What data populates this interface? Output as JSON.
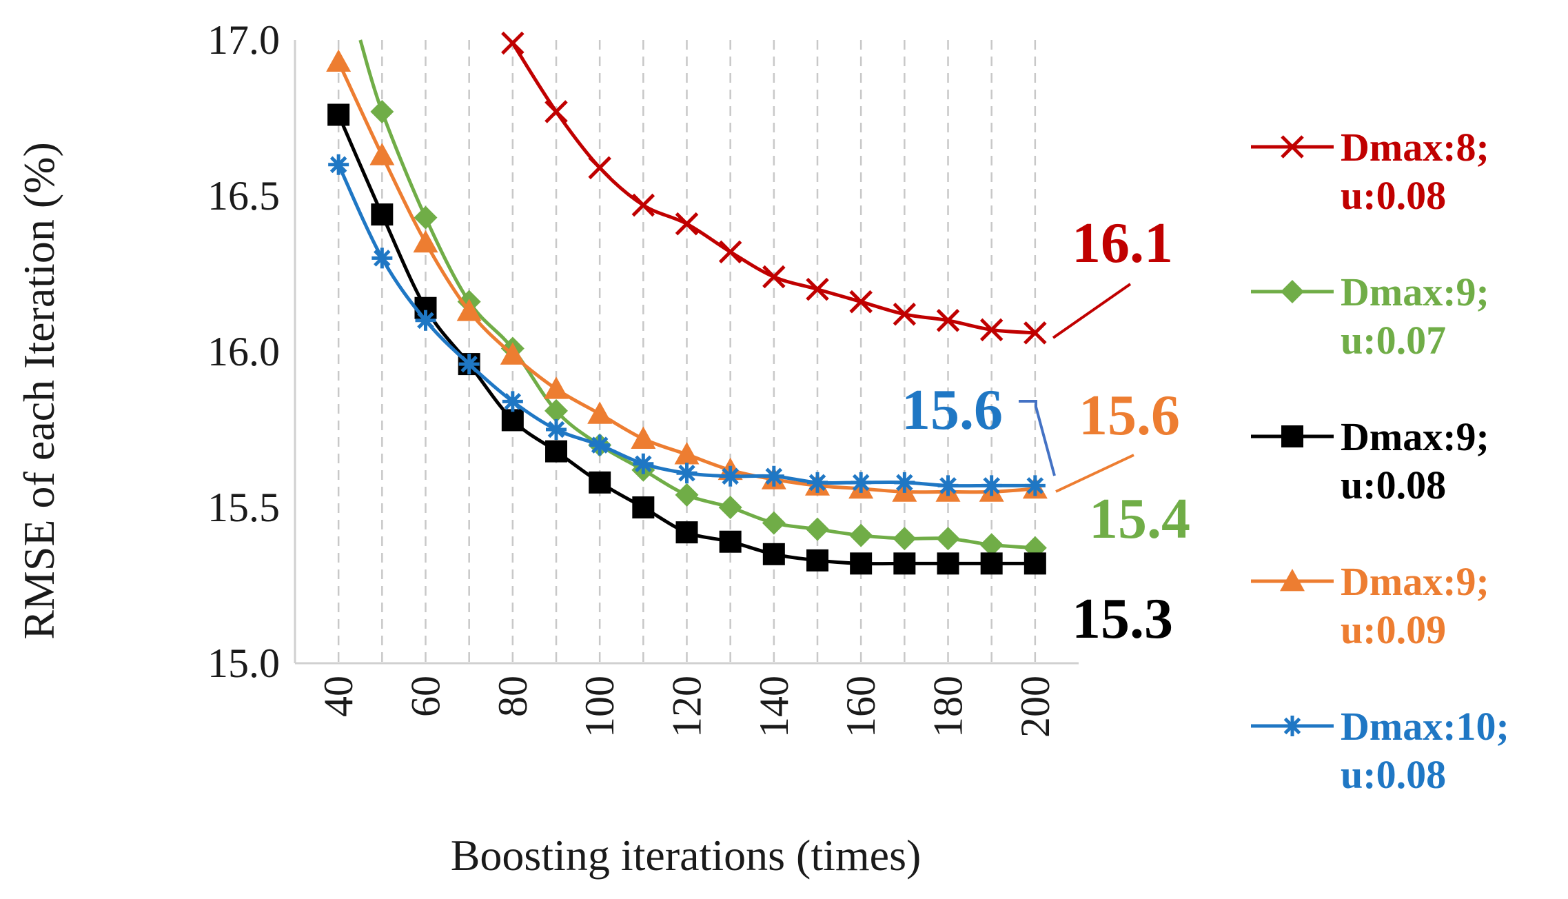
{
  "chart_data": {
    "type": "line",
    "title": "",
    "xlabel": "Boosting iterations (times)",
    "ylabel": "RMSE of each Iteration (%)",
    "xlim": [
      30,
      210
    ],
    "ylim": [
      15.0,
      17.0
    ],
    "grid": "vertical dashed",
    "x_ticks": [
      40,
      60,
      80,
      100,
      120,
      140,
      160,
      180,
      200
    ],
    "x_tick_labels": [
      "40",
      "60",
      "80",
      "100",
      "120",
      "140",
      "160",
      "180",
      "200"
    ],
    "y_ticks": [
      15.0,
      15.5,
      16.0,
      16.5,
      17.0
    ],
    "y_tick_labels": [
      "15.0",
      "15.5",
      "16.0",
      "16.5",
      "17.0"
    ],
    "legend_position": "right",
    "series": [
      {
        "name_line1": "Dmax:8;",
        "name_line2": "u:0.08",
        "color": "#c00000",
        "marker": "x",
        "end_label": "16.1",
        "x": [
          80,
          90,
          100,
          110,
          120,
          130,
          140,
          150,
          160,
          170,
          180,
          190,
          200
        ],
        "values": [
          16.99,
          16.77,
          16.59,
          16.47,
          16.41,
          16.32,
          16.24,
          16.2,
          16.16,
          16.12,
          16.1,
          16.07,
          16.06
        ]
      },
      {
        "name_line1": "Dmax:9;",
        "name_line2": "u:0.07",
        "color": "#70ad47",
        "marker": "diamond",
        "end_label": "15.4",
        "x": [
          45,
          50,
          60,
          70,
          80,
          90,
          100,
          110,
          120,
          130,
          140,
          150,
          160,
          170,
          180,
          190,
          200
        ],
        "values": [
          17.0,
          16.77,
          16.43,
          16.16,
          16.01,
          15.81,
          15.7,
          15.62,
          15.54,
          15.5,
          15.45,
          15.43,
          15.41,
          15.4,
          15.4,
          15.38,
          15.37
        ]
      },
      {
        "name_line1": "Dmax:9;",
        "name_line2": "u:0.08",
        "color": "#000000",
        "marker": "square",
        "end_label": "15.3",
        "x": [
          40,
          50,
          60,
          70,
          80,
          90,
          100,
          110,
          120,
          130,
          140,
          150,
          160,
          170,
          180,
          190,
          200
        ],
        "values": [
          16.76,
          16.44,
          16.14,
          15.96,
          15.78,
          15.68,
          15.58,
          15.5,
          15.42,
          15.39,
          15.35,
          15.33,
          15.32,
          15.32,
          15.32,
          15.32,
          15.32
        ]
      },
      {
        "name_line1": "Dmax:9;",
        "name_line2": "u:0.09",
        "color": "#ed7d31",
        "marker": "triangle",
        "end_label": "15.6",
        "x": [
          40,
          50,
          60,
          70,
          80,
          90,
          100,
          110,
          120,
          130,
          140,
          150,
          160,
          170,
          180,
          190,
          200
        ],
        "values": [
          16.93,
          16.63,
          16.35,
          16.13,
          15.99,
          15.88,
          15.8,
          15.72,
          15.67,
          15.62,
          15.59,
          15.57,
          15.56,
          15.55,
          15.55,
          15.55,
          15.56
        ]
      },
      {
        "name_line1": "Dmax:10;",
        "name_line2": "u:0.08",
        "color": "#1f77c4",
        "marker": "asterisk",
        "end_label": "15.6",
        "x": [
          40,
          50,
          60,
          70,
          80,
          90,
          100,
          110,
          120,
          130,
          140,
          150,
          160,
          170,
          180,
          190,
          200
        ],
        "values": [
          16.6,
          16.3,
          16.1,
          15.96,
          15.84,
          15.75,
          15.7,
          15.64,
          15.61,
          15.6,
          15.6,
          15.58,
          15.58,
          15.58,
          15.57,
          15.57,
          15.57
        ]
      }
    ]
  }
}
